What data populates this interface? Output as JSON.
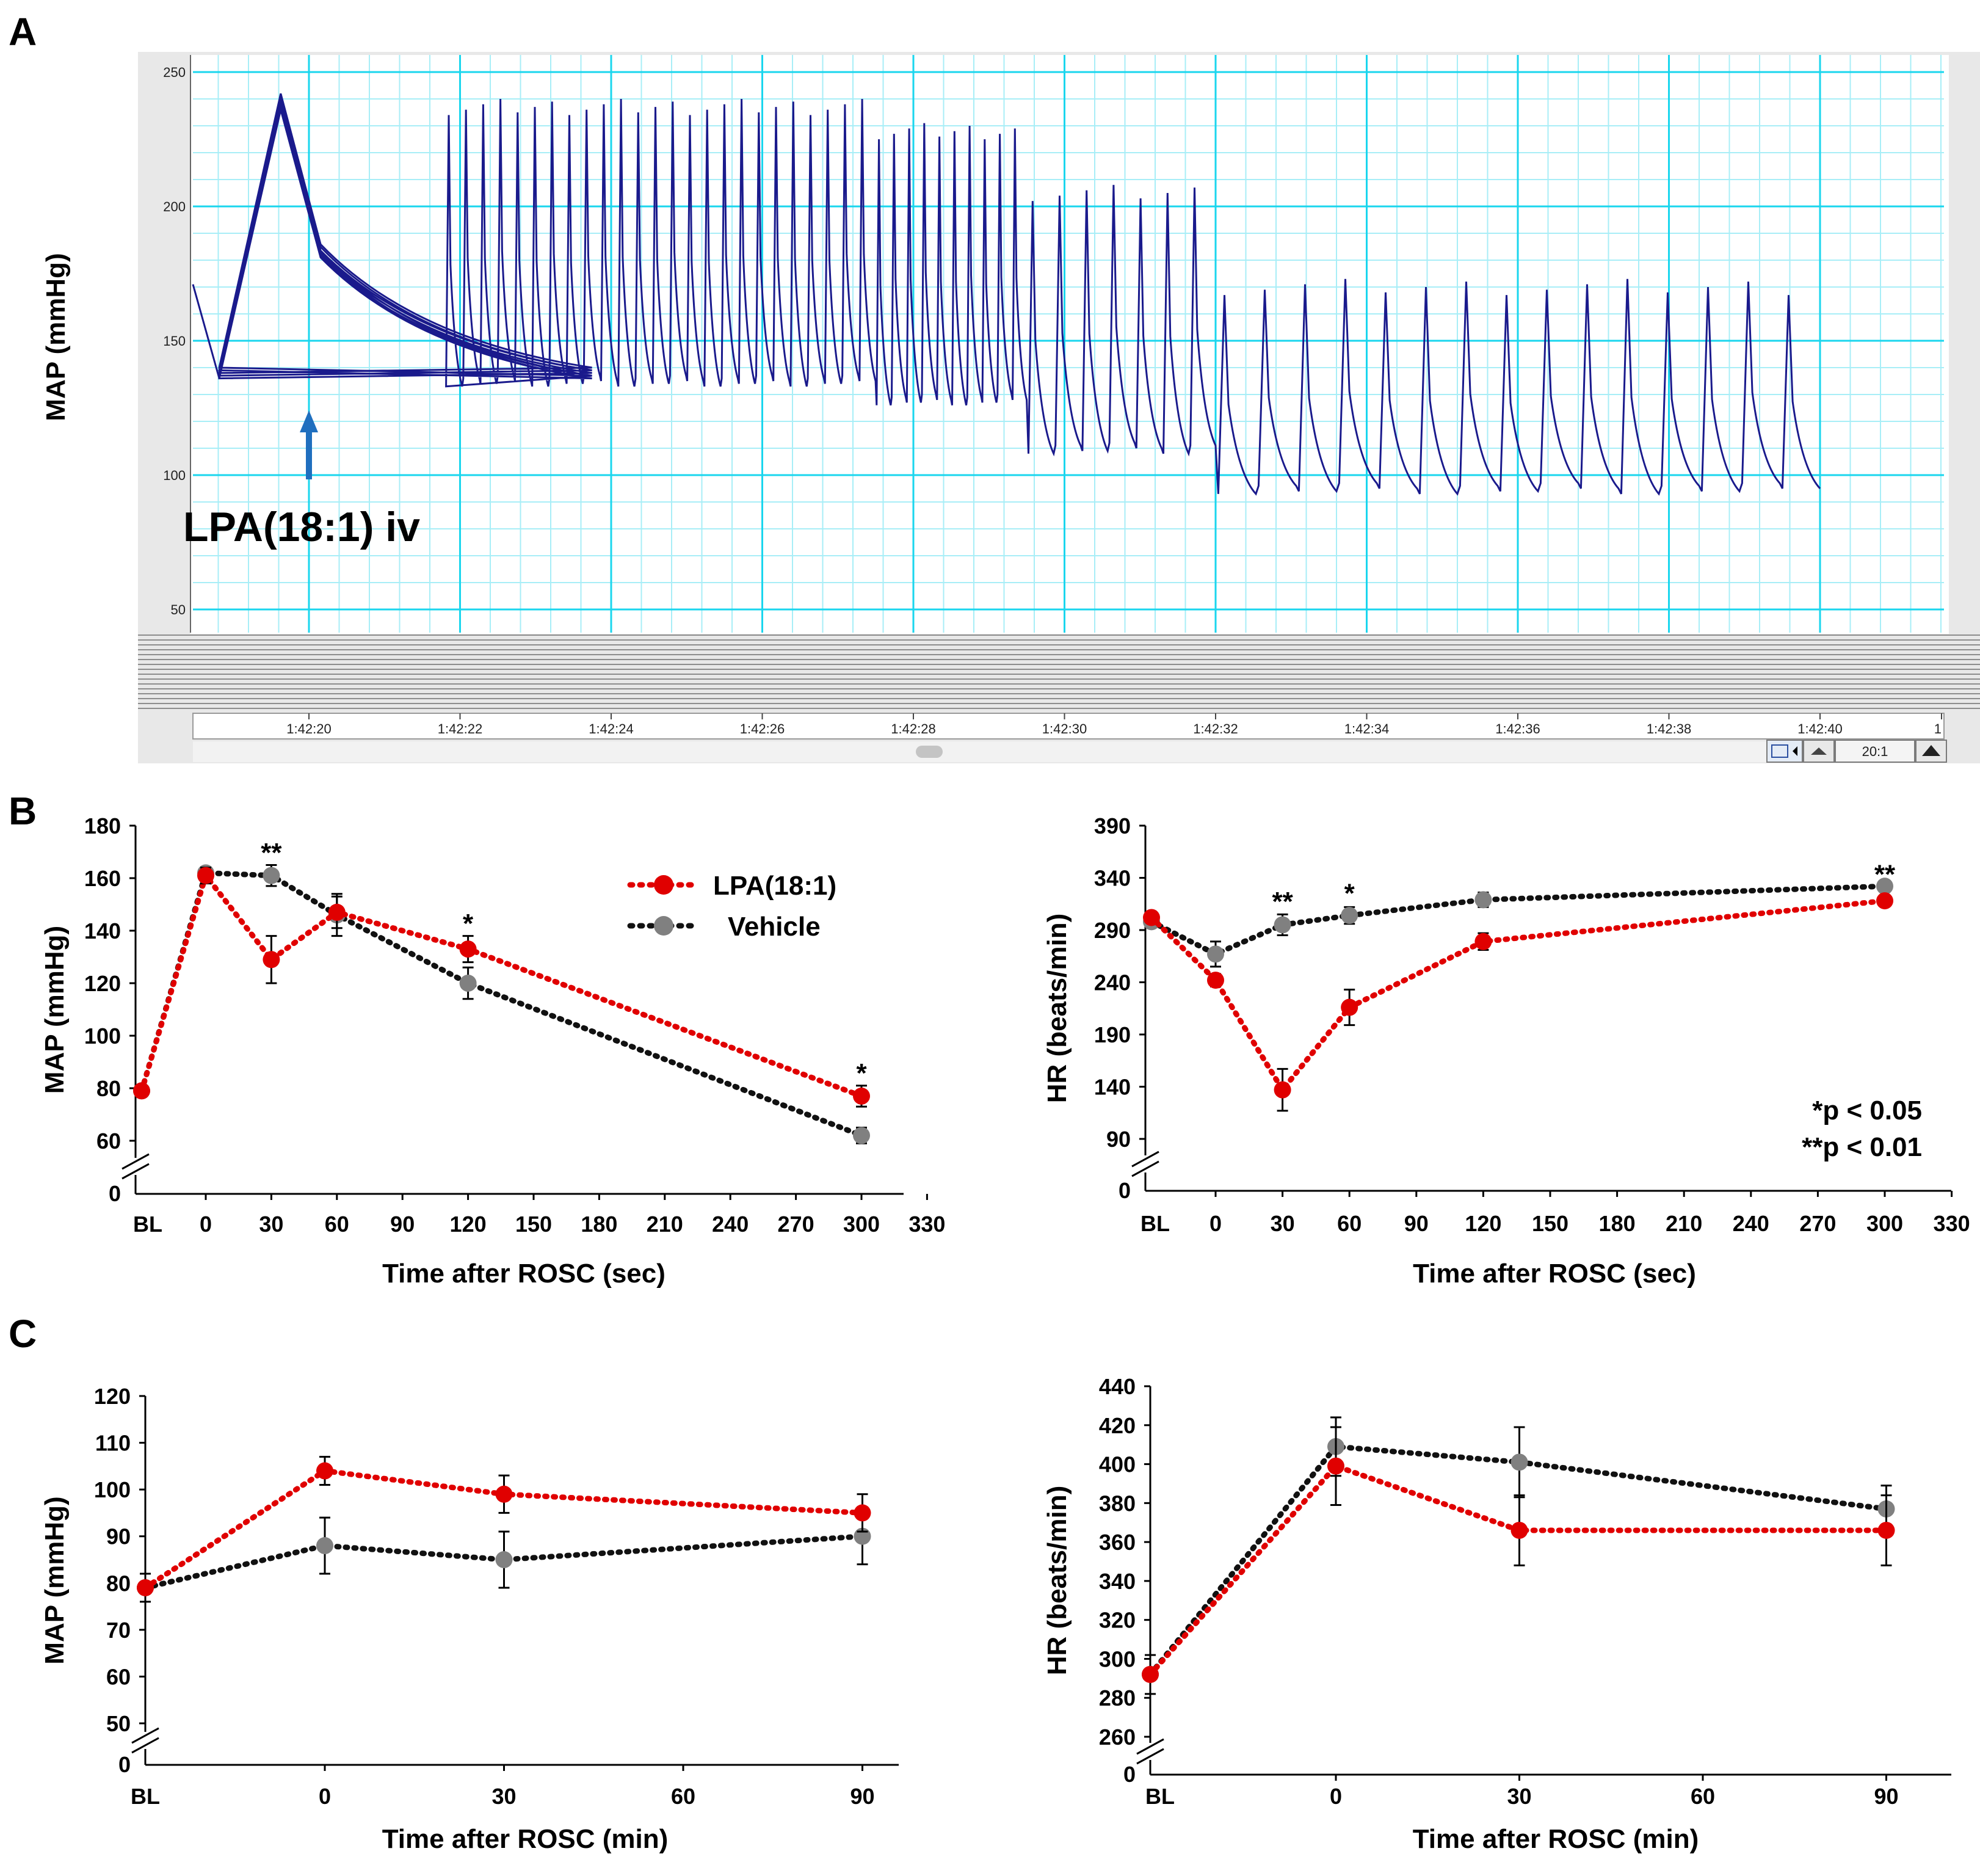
{
  "colors": {
    "lpa": "#e00000",
    "vehicle": "#808080",
    "trace": "#1a1a8c",
    "grid_major": "#1ad6ee",
    "grid_minor": "#a8eef7",
    "arrow": "#1f6fbf",
    "axis": "#000000"
  },
  "legend": {
    "lpa": "LPA(18:1)",
    "vehicle": "Vehicle"
  },
  "significance_note": {
    "p05": "*p < 0.05",
    "p01": "**p < 0.01"
  },
  "chart_data": [
    {
      "id": "A",
      "panel": "A",
      "type": "line",
      "ylabel": "MAP (mmHg)",
      "yticks": [
        "250",
        "200",
        "150",
        "100",
        "50"
      ],
      "time_labels": [
        "1:42:20",
        "1:42:22",
        "1:42:24",
        "1:42:26",
        "1:42:28",
        "1:42:30",
        "1:42:32",
        "1:42:34",
        "1:42:36",
        "1:42:38",
        "1:42:40",
        "1"
      ],
      "annotation": "LPA(18:1) iv",
      "footer": {
        "ratio": "20:1"
      },
      "ylim": [
        50,
        250
      ],
      "segments": [
        {
          "t_start": 19.55,
          "t_end": 1.8,
          "n_beats": 8,
          "peak": 239,
          "trough": 138
        },
        {
          "t_start": 1.8,
          "t_end": 7.5,
          "n_beats": 25,
          "peak": 237,
          "trough": 135
        },
        {
          "t_start": 7.5,
          "t_end": 9.5,
          "n_beats": 10,
          "peak": 228,
          "trough": 128
        },
        {
          "t_start": 9.5,
          "t_end": 12.0,
          "n_beats": 7,
          "peak": 205,
          "trough": 110
        },
        {
          "t_start": 12.0,
          "t_end": 20.0,
          "n_beats": 15,
          "peak": 170,
          "trough": 95
        }
      ]
    },
    {
      "id": "B-MAP",
      "panel": "B",
      "type": "line",
      "ylabel": "MAP (mmHg)",
      "xlabel": "Time after ROSC (sec)",
      "categories": [
        "BL",
        "0",
        "30",
        "60",
        "120",
        "300"
      ],
      "x_ticks": [
        "BL",
        "0",
        "30",
        "60",
        "90",
        "120",
        "150",
        "180",
        "210",
        "240",
        "270",
        "300",
        "330"
      ],
      "y_ticks": [
        "60",
        "80",
        "100",
        "120",
        "140",
        "160",
        "180"
      ],
      "y_zero": "0",
      "ylim": [
        60,
        180
      ],
      "series": [
        {
          "name": "LPA(18:1)",
          "values": [
            79,
            161,
            129,
            147,
            133,
            77
          ],
          "err": [
            0,
            3,
            9,
            6,
            5,
            4
          ]
        },
        {
          "name": "Vehicle",
          "values": [
            79,
            162,
            161,
            146,
            120,
            62
          ],
          "err": [
            0,
            2,
            4,
            8,
            6,
            3
          ]
        }
      ],
      "significance": [
        {
          "x": "30",
          "y": 170,
          "label": "**"
        },
        {
          "x": "120",
          "y": 143,
          "label": "*"
        },
        {
          "x": "300",
          "y": 86,
          "label": "*"
        }
      ]
    },
    {
      "id": "B-HR",
      "panel": "B",
      "type": "line",
      "ylabel": "HR (beats/min)",
      "xlabel": "Time after ROSC (sec)",
      "categories": [
        "BL",
        "0",
        "30",
        "60",
        "120",
        "300"
      ],
      "x_ticks": [
        "BL",
        "0",
        "30",
        "60",
        "90",
        "120",
        "150",
        "180",
        "210",
        "240",
        "270",
        "300",
        "330"
      ],
      "y_ticks": [
        "90",
        "140",
        "190",
        "240",
        "290",
        "340",
        "390"
      ],
      "y_zero": "0",
      "ylim": [
        90,
        390
      ],
      "series": [
        {
          "name": "LPA(18:1)",
          "values": [
            302,
            242,
            137,
            216,
            279,
            318
          ],
          "err": [
            0,
            6,
            20,
            17,
            8,
            5
          ]
        },
        {
          "name": "Vehicle",
          "values": [
            298,
            267,
            295,
            304,
            319,
            332
          ],
          "err": [
            0,
            12,
            10,
            8,
            7,
            5
          ]
        }
      ],
      "significance": [
        {
          "x": "30",
          "y": 318,
          "label": "**"
        },
        {
          "x": "60",
          "y": 326,
          "label": "*"
        },
        {
          "x": "300",
          "y": 344,
          "label": "**"
        }
      ]
    },
    {
      "id": "C-MAP",
      "panel": "C",
      "type": "line",
      "ylabel": "MAP (mmHg)",
      "xlabel": "Time after ROSC (min)",
      "categories": [
        "BL",
        "0",
        "30",
        "90"
      ],
      "x_ticks": [
        "BL",
        "0",
        "30",
        "60",
        "90"
      ],
      "y_ticks": [
        "50",
        "60",
        "70",
        "80",
        "90",
        "100",
        "110",
        "120"
      ],
      "y_zero": "0",
      "ylim": [
        50,
        120
      ],
      "series": [
        {
          "name": "LPA(18:1)",
          "values": [
            79,
            104,
            99,
            95
          ],
          "err": [
            0,
            3,
            4,
            4
          ]
        },
        {
          "name": "Vehicle",
          "values": [
            79,
            88,
            85,
            90
          ],
          "err": [
            3,
            6,
            6,
            6
          ]
        }
      ],
      "significance": []
    },
    {
      "id": "C-HR",
      "panel": "C",
      "type": "line",
      "ylabel": "HR (beats/min)",
      "xlabel": "Time after ROSC (min)",
      "categories": [
        "BL",
        "0",
        "30",
        "90"
      ],
      "x_ticks": [
        "BL",
        "0",
        "30",
        "60",
        "90"
      ],
      "y_ticks": [
        "260",
        "280",
        "300",
        "320",
        "340",
        "360",
        "380",
        "400",
        "420",
        "440"
      ],
      "y_zero": "0",
      "ylim": [
        260,
        440
      ],
      "series": [
        {
          "name": "LPA(18:1)",
          "values": [
            292,
            399,
            366,
            366
          ],
          "err": [
            0,
            20,
            18,
            18
          ]
        },
        {
          "name": "Vehicle",
          "values": [
            292,
            409,
            401,
            377
          ],
          "err": [
            10,
            15,
            18,
            12
          ]
        }
      ],
      "significance": []
    }
  ]
}
